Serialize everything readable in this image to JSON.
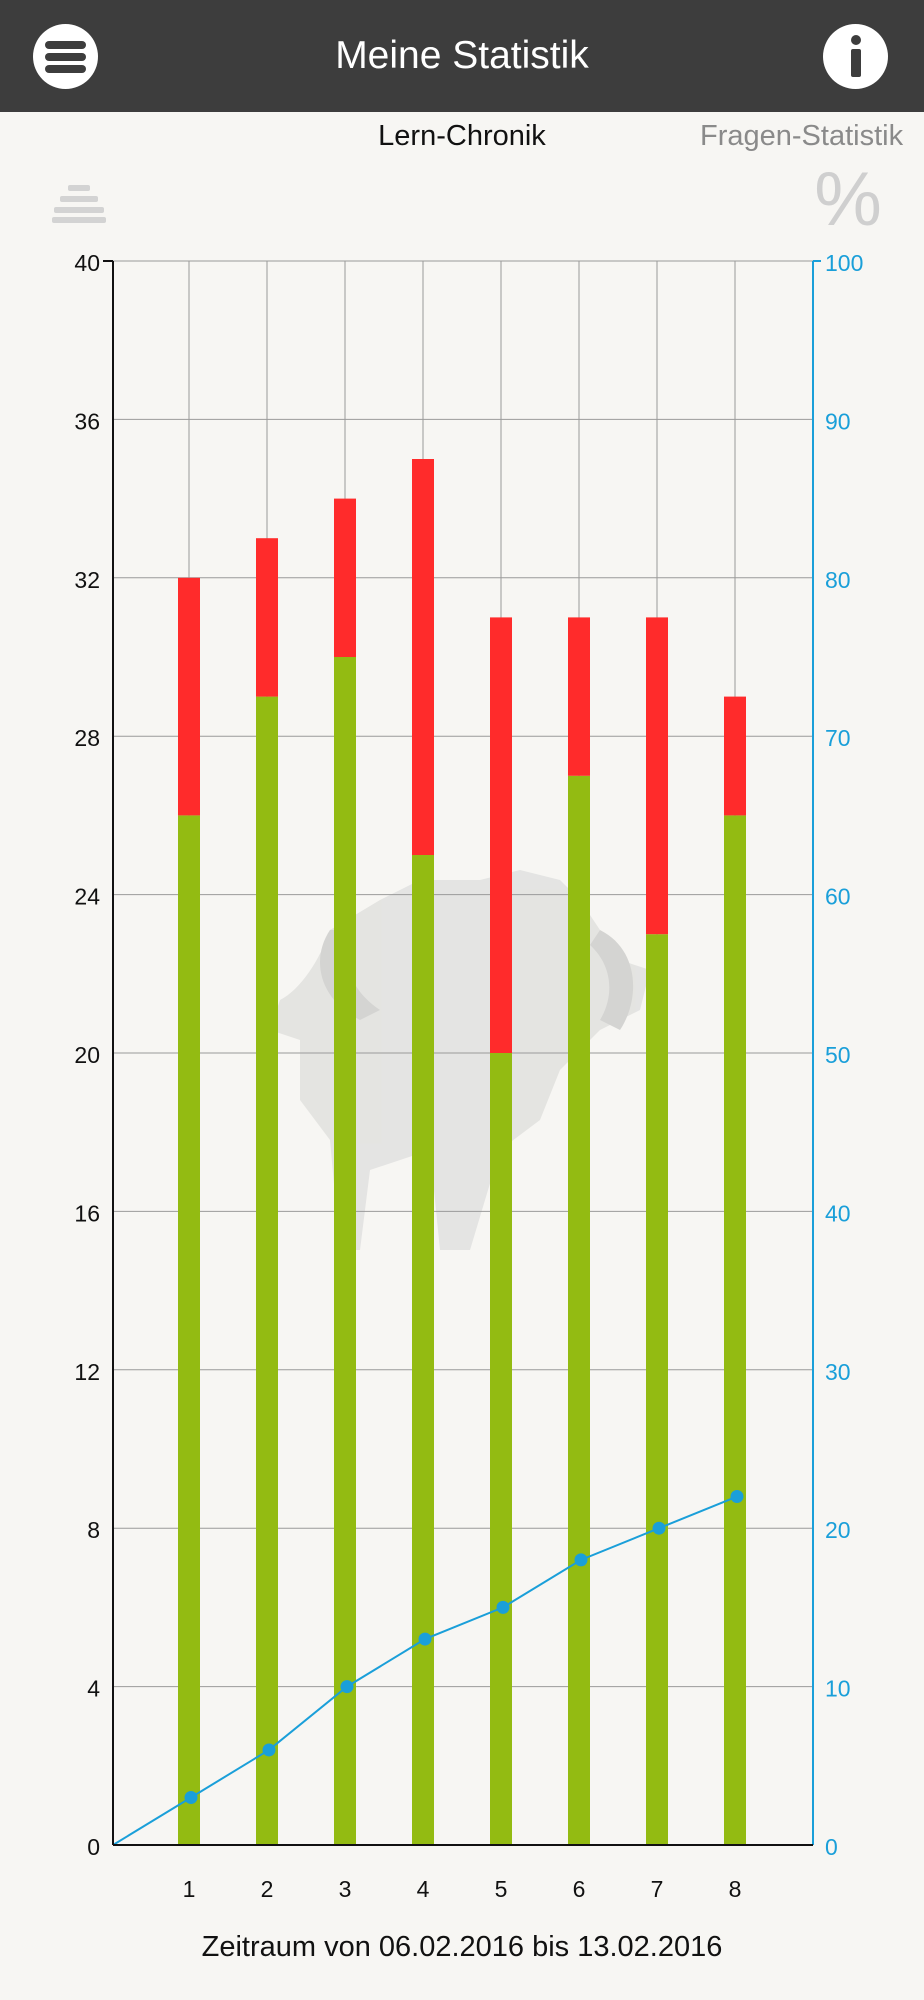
{
  "header": {
    "title": "Meine Statistik",
    "menu_icon": "hamburger-menu-icon",
    "info_icon": "info-icon"
  },
  "tabs": {
    "active": "Lern-Chronik",
    "other": "Fragen-Statistik"
  },
  "toolbar": {
    "legend_icon": "list-icon",
    "percent_icon": "%"
  },
  "chart_data": {
    "type": "bar",
    "stacked": true,
    "categories": [
      "1",
      "2",
      "3",
      "4",
      "5",
      "6",
      "7",
      "8"
    ],
    "series": [
      {
        "color": "#93bb12",
        "values": [
          26,
          29,
          30,
          25,
          20,
          27,
          23,
          26
        ]
      },
      {
        "color": "#ff2b2b",
        "values": [
          6,
          4,
          4,
          10,
          11,
          4,
          8,
          3
        ]
      }
    ],
    "line_series": [
      {
        "axis": "right",
        "color": "#1a9fd9",
        "values": [
          0,
          3,
          6,
          10,
          13,
          15,
          18,
          20,
          22
        ]
      }
    ],
    "y_left": {
      "min": 0,
      "max": 40,
      "ticks": [
        0,
        4,
        8,
        12,
        16,
        20,
        24,
        28,
        32,
        36,
        40
      ]
    },
    "y_right": {
      "min": 0,
      "max": 100,
      "ticks": [
        0,
        10,
        20,
        30,
        40,
        50,
        60,
        70,
        80,
        90,
        100
      ],
      "color": "#1a9fd9"
    },
    "grid": true,
    "caption": "Zeitraum von 06.02.2016 bis 13.02.2016"
  }
}
